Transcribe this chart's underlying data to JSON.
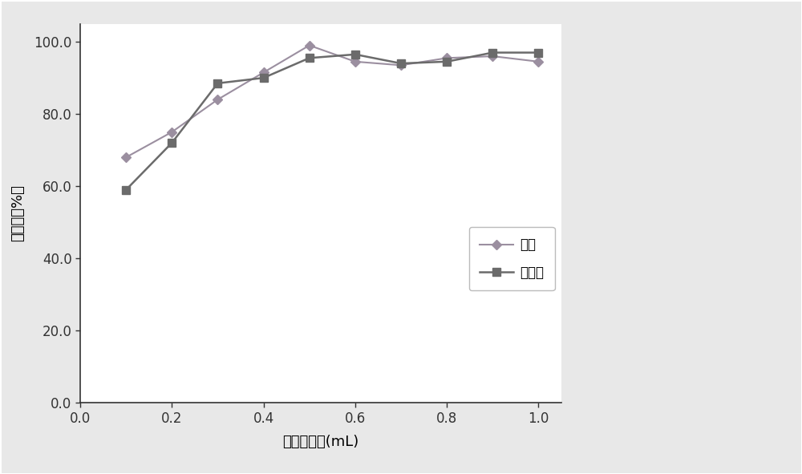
{
  "x": [
    0.1,
    0.2,
    0.3,
    0.4,
    0.5,
    0.6,
    0.7,
    0.8,
    0.9,
    1.0
  ],
  "aniline_y": [
    68.0,
    75.0,
    84.0,
    91.5,
    99.0,
    94.5,
    93.5,
    95.5,
    96.0,
    94.5
  ],
  "benzidine_y": [
    59.0,
    72.0,
    88.5,
    90.0,
    95.5,
    96.5,
    94.0,
    94.5,
    97.0,
    97.0
  ],
  "xlabel": "洗脱剂体积(mL)",
  "ylabel": "回收率（%）",
  "legend_aniline": "苯胺",
  "legend_benzidine": "联苯胺",
  "xlim": [
    0.0,
    1.05
  ],
  "ylim": [
    0.0,
    105.0
  ],
  "xticks": [
    0.0,
    0.2,
    0.4,
    0.6,
    0.8,
    1.0
  ],
  "yticks": [
    0.0,
    20.0,
    40.0,
    60.0,
    80.0,
    100.0
  ],
  "line_color_aniline": "#9b8fa0",
  "line_color_benzidine": "#6b6b6b",
  "bg_color": "#ffffff",
  "fig_border_color": "#c0c0c0",
  "tick_fontsize": 12,
  "label_fontsize": 13,
  "legend_fontsize": 12
}
